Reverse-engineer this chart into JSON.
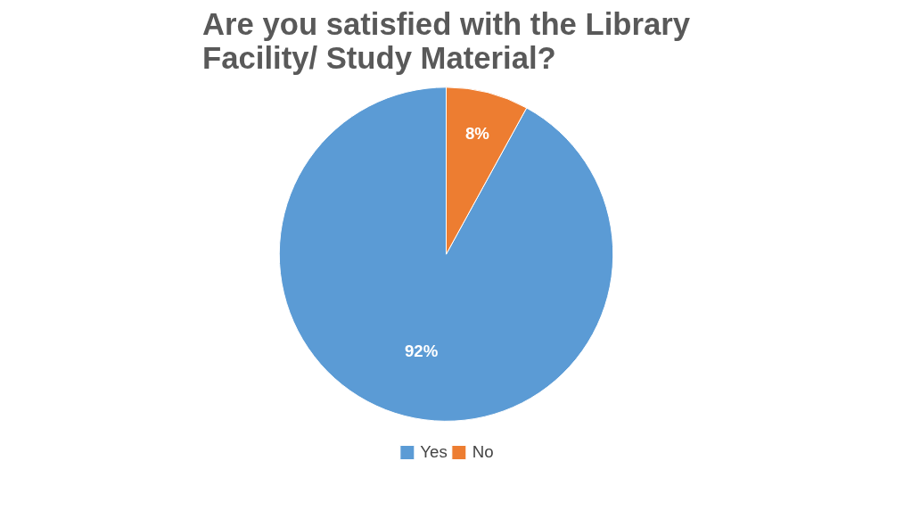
{
  "chart_data": {
    "type": "pie",
    "title": "Are you satisfied with the Library Facility/ Study Material?",
    "categories": [
      "Yes",
      "No"
    ],
    "values": [
      92,
      8
    ],
    "colors": [
      "#5b9bd5",
      "#ed7d31"
    ],
    "value_labels": [
      "92%",
      "8%"
    ],
    "legend": "bottom"
  }
}
